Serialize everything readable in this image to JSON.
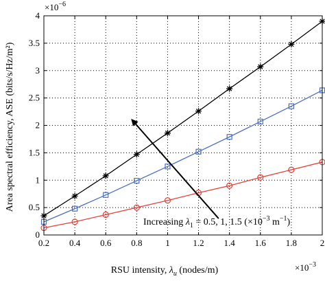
{
  "chart_data": {
    "type": "line",
    "x": [
      0.2,
      0.4,
      0.6,
      0.8,
      1.0,
      1.2,
      1.4,
      1.6,
      1.8,
      2.0
    ],
    "x_exponent_label": "×10",
    "x_exponent_power": "−3",
    "y_exponent_label": "×10",
    "y_exponent_power": "−6",
    "xlabel": "RSU intensity, λ_u (nodes/m)",
    "xlabel_main": "RSU intensity, ",
    "xlabel_symbol": "λ",
    "xlabel_sub": "u",
    "xlabel_tail": " (nodes/m)",
    "ylabel": "Area spectral efficiency, ASE (bits/s/Hz/m²)",
    "xlim": [
      0.2,
      2.0
    ],
    "ylim": [
      0,
      4
    ],
    "xticks": [
      0.2,
      0.4,
      0.6,
      0.8,
      1.0,
      1.2,
      1.4,
      1.6,
      1.8,
      2.0
    ],
    "xtick_labels": [
      "0.2",
      "0.4",
      "0.6",
      "0.8",
      "1",
      "1.2",
      "1.4",
      "1.6",
      "1.8",
      "2"
    ],
    "yticks": [
      0,
      0.5,
      1,
      1.5,
      2,
      2.5,
      3,
      3.5,
      4
    ],
    "ytick_labels": [
      "0",
      "0.5",
      "1",
      "1.5",
      "2",
      "2.5",
      "3",
      "3.5",
      "4"
    ],
    "grid": true,
    "series": [
      {
        "color": "#e8403a",
        "marker": "circle",
        "values": [
          0.13,
          0.24,
          0.37,
          0.5,
          0.63,
          0.77,
          0.9,
          1.05,
          1.19,
          1.33
        ]
      },
      {
        "color": "#4a6fc4",
        "marker": "square",
        "values": [
          0.24,
          0.48,
          0.73,
          0.99,
          1.25,
          1.52,
          1.79,
          2.07,
          2.35,
          2.64
        ]
      },
      {
        "color": "#000000",
        "marker": "asterisk",
        "values": [
          0.35,
          0.71,
          1.08,
          1.47,
          1.86,
          2.26,
          2.67,
          3.07,
          3.48,
          3.9
        ]
      }
    ],
    "annotation": {
      "text": "Increasing λ1 = 0.5, 1, 1.5 (×10−3 m−1)",
      "text_main": "Increasing ",
      "symbol": "λ",
      "sub": "1",
      "mid": " = 0.5, 1, 1.5 (×10",
      "sup1": "−3",
      "unit": " m",
      "sup2": "−1",
      "close": ")",
      "arrow_from": [
        1.33,
        0.3
      ],
      "arrow_to": [
        0.77,
        2.1
      ]
    }
  }
}
